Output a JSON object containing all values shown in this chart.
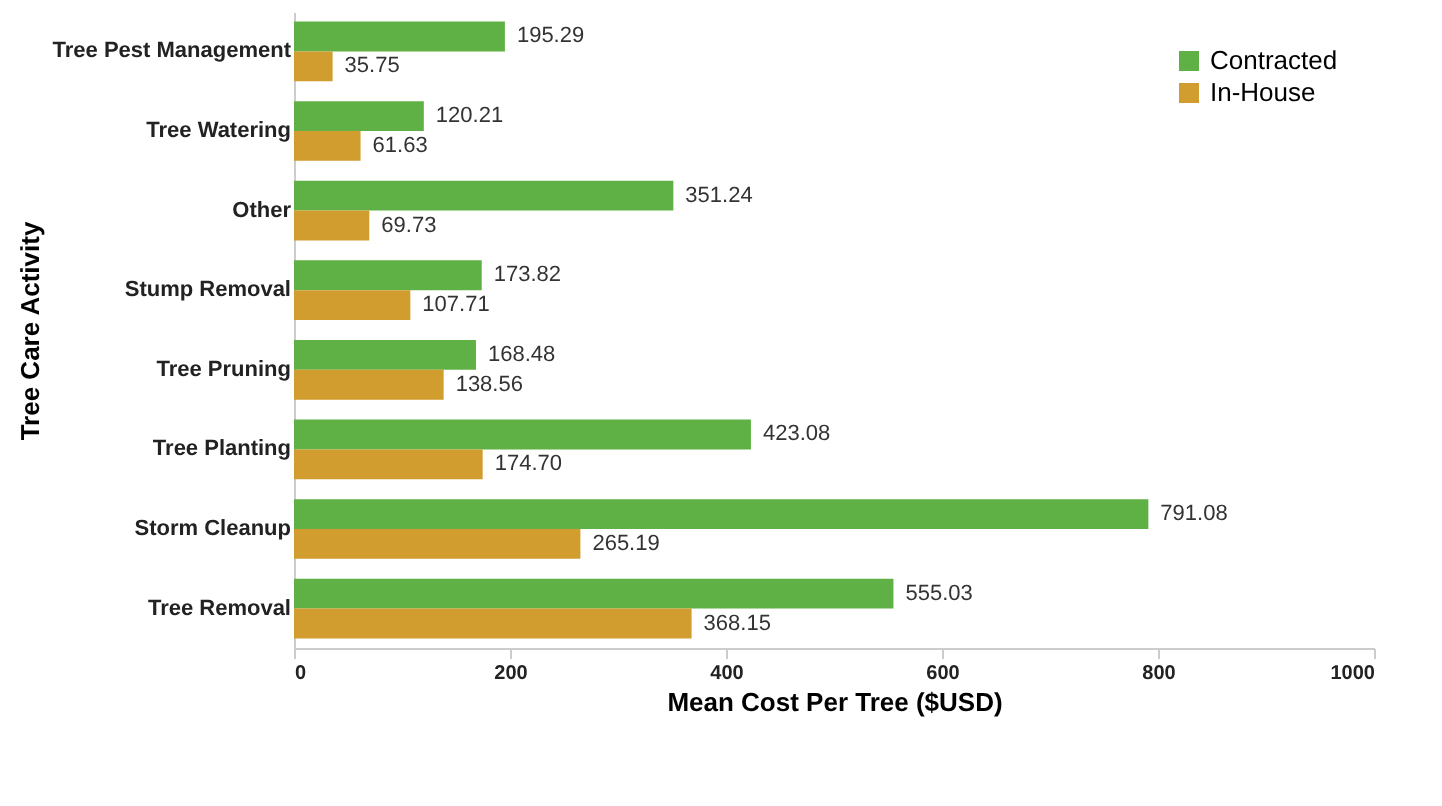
{
  "chart_data": {
    "type": "bar",
    "orientation": "horizontal",
    "xlabel": "Mean Cost Per Tree ($USD)",
    "ylabel": "Tree Care Activity",
    "categories": [
      "Tree Pest Management",
      "Tree Watering",
      "Other",
      "Stump Removal",
      "Tree Pruning",
      "Tree Planting",
      "Storm Cleanup",
      "Tree Removal"
    ],
    "series": [
      {
        "name": "Contracted",
        "color": "#5fb045",
        "values": [
          195.29,
          120.21,
          351.24,
          173.82,
          168.48,
          423.08,
          791.08,
          555.03
        ],
        "value_labels": [
          "195.29",
          "120.21",
          "351.24",
          "173.82",
          "168.48",
          "423.08",
          "791.08",
          "555.03"
        ]
      },
      {
        "name": "In-House",
        "color": "#d19d2e",
        "values": [
          35.75,
          61.63,
          69.73,
          107.71,
          138.56,
          174.7,
          265.19,
          368.15
        ],
        "value_labels": [
          "35.75",
          "61.63",
          "69.73",
          "107.71",
          "138.56",
          "174.70",
          "265.19",
          "368.15"
        ]
      }
    ],
    "xlim": [
      0,
      1000
    ],
    "xticks": [
      0,
      200,
      400,
      600,
      800,
      1000
    ],
    "grid": false,
    "legend": "top right"
  }
}
